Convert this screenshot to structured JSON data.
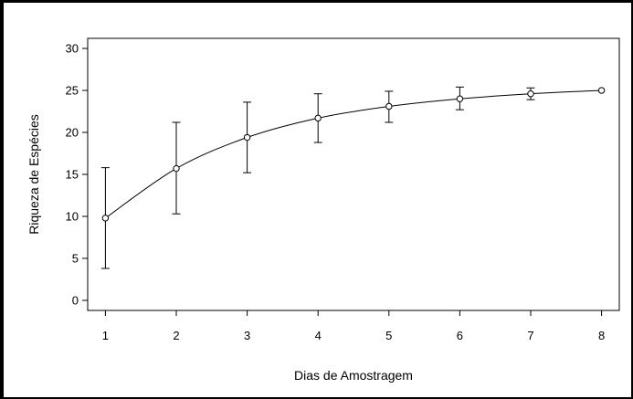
{
  "chart_data": {
    "type": "line",
    "title": "",
    "xlabel": "Dias de Amostragem",
    "ylabel": "Riqueza de Espécies",
    "x": [
      1,
      2,
      3,
      4,
      5,
      6,
      7,
      8
    ],
    "series": [
      {
        "values": [
          9.8,
          15.7,
          19.4,
          21.7,
          23.1,
          24.0,
          24.6,
          25.0
        ],
        "error_low": [
          3.8,
          10.3,
          15.2,
          18.8,
          21.2,
          22.7,
          23.9,
          25.0
        ],
        "error_high": [
          15.8,
          21.2,
          23.6,
          24.6,
          24.9,
          25.4,
          25.3,
          25.0
        ]
      }
    ],
    "xticks": [
      "1",
      "2",
      "3",
      "4",
      "5",
      "6",
      "7",
      "8"
    ],
    "yticks": [
      "0",
      "5",
      "10",
      "15",
      "20",
      "25",
      "30"
    ],
    "xlim": [
      0.75,
      8.25
    ],
    "ylim": [
      -1.2,
      31.2
    ],
    "grid": false,
    "legend": "none",
    "marker": "open-circle",
    "line_color": "#000000"
  }
}
